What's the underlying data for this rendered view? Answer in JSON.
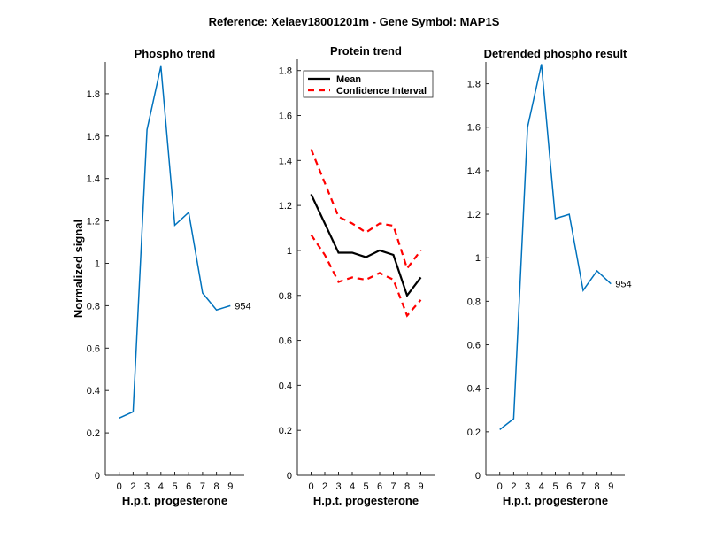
{
  "suptitle": "Reference:  Xelaev18001201m - Gene Symbol:  MAP1S",
  "colors": {
    "phospho": "#0072BD",
    "mean": "#000000",
    "ci": "#FF0000"
  },
  "chart_data": [
    {
      "type": "line",
      "title": "Phospho trend",
      "xlabel": "H.p.t. progesterone",
      "ylabel": "Normalized signal",
      "categories": [
        "0",
        "2",
        "3",
        "4",
        "5",
        "6",
        "7",
        "8",
        "9"
      ],
      "ylim": [
        0,
        1.95
      ],
      "yticks": [
        "0",
        "0.2",
        "0.4",
        "0.6",
        "0.8",
        "1",
        "1.2",
        "1.4",
        "1.6",
        "1.8"
      ],
      "series": [
        {
          "name": "954",
          "values": [
            0.27,
            0.3,
            1.63,
            1.93,
            1.18,
            1.24,
            0.86,
            0.78,
            0.8
          ]
        }
      ],
      "annotation": "954"
    },
    {
      "type": "line",
      "title": "Protein trend",
      "xlabel": "H.p.t. progesterone",
      "ylabel": "",
      "categories": [
        "0",
        "2",
        "3",
        "4",
        "5",
        "6",
        "7",
        "8",
        "9"
      ],
      "ylim": [
        0,
        1.85
      ],
      "yticks": [
        "0",
        "0.2",
        "0.4",
        "0.6",
        "0.8",
        "1",
        "1.2",
        "1.4",
        "1.6",
        "1.8"
      ],
      "series": [
        {
          "name": "Mean",
          "values": [
            1.25,
            1.12,
            0.99,
            0.99,
            0.97,
            1.0,
            0.98,
            0.8,
            0.88
          ]
        },
        {
          "name": "Confidence Interval",
          "values": [
            1.45,
            1.3,
            1.15,
            1.12,
            1.08,
            1.12,
            1.11,
            0.92,
            1.0
          ]
        },
        {
          "name": "Confidence Interval lower",
          "values": [
            1.07,
            0.98,
            0.86,
            0.88,
            0.87,
            0.9,
            0.87,
            0.71,
            0.78
          ]
        }
      ],
      "legend": [
        "Mean",
        "Confidence Interval"
      ],
      "legend_position": "top-right"
    },
    {
      "type": "line",
      "title": "Detrended phospho result",
      "xlabel": "H.p.t. progesterone",
      "ylabel": "",
      "categories": [
        "0",
        "2",
        "3",
        "4",
        "5",
        "6",
        "7",
        "8",
        "9"
      ],
      "ylim": [
        0,
        1.9
      ],
      "yticks": [
        "0",
        "0.2",
        "0.4",
        "0.6",
        "0.8",
        "1",
        "1.2",
        "1.4",
        "1.6",
        "1.8"
      ],
      "series": [
        {
          "name": "954",
          "values": [
            0.21,
            0.26,
            1.6,
            1.89,
            1.18,
            1.2,
            0.85,
            0.94,
            0.88
          ]
        }
      ],
      "annotation": "954"
    }
  ]
}
